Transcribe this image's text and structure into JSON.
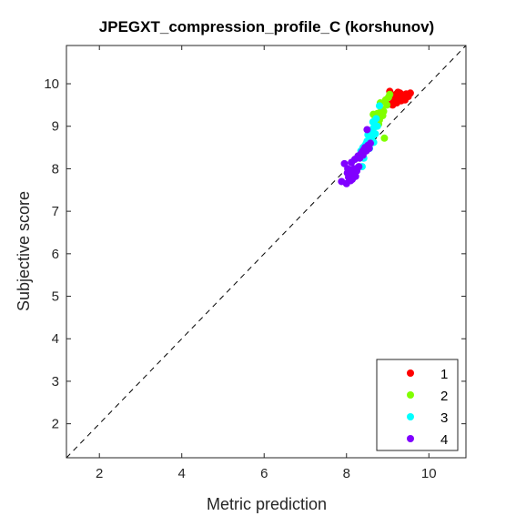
{
  "chart_data": {
    "type": "scatter",
    "title": "JPEGXT_compression_profile_C (korshunov)",
    "xlabel": "Metric prediction",
    "ylabel": "Subjective score",
    "xlim": [
      1.2,
      10.9
    ],
    "ylim": [
      1.2,
      10.9
    ],
    "xticks": [
      2,
      4,
      6,
      8,
      10
    ],
    "yticks": [
      2,
      3,
      4,
      5,
      6,
      7,
      8,
      9,
      10
    ],
    "grid": false,
    "legend_position": "bottom-right",
    "reference_line": "identity (dashed)",
    "series": [
      {
        "name": "1",
        "color": "#ff0000",
        "points": [
          [
            9.05,
            9.82
          ],
          [
            9.1,
            9.7
          ],
          [
            9.15,
            9.62
          ],
          [
            9.2,
            9.75
          ],
          [
            9.22,
            9.55
          ],
          [
            9.28,
            9.68
          ],
          [
            9.3,
            9.78
          ],
          [
            9.33,
            9.6
          ],
          [
            9.38,
            9.72
          ],
          [
            9.4,
            9.65
          ],
          [
            9.45,
            9.76
          ],
          [
            9.5,
            9.7
          ],
          [
            9.55,
            9.78
          ],
          [
            9.25,
            9.8
          ],
          [
            9.18,
            9.58
          ],
          [
            9.35,
            9.74
          ],
          [
            9.42,
            9.62
          ],
          [
            9.12,
            9.5
          ],
          [
            9.08,
            9.52
          ]
        ]
      },
      {
        "name": "2",
        "color": "#80ff00",
        "points": [
          [
            8.65,
            9.28
          ],
          [
            8.7,
            9.2
          ],
          [
            8.75,
            9.3
          ],
          [
            8.78,
            9.05
          ],
          [
            8.8,
            9.15
          ],
          [
            8.85,
            9.4
          ],
          [
            8.88,
            9.25
          ],
          [
            8.9,
            9.35
          ],
          [
            8.95,
            9.62
          ],
          [
            8.98,
            9.5
          ],
          [
            9.02,
            9.68
          ],
          [
            9.05,
            9.75
          ],
          [
            8.92,
            8.72
          ],
          [
            8.72,
            9.0
          ],
          [
            8.82,
            9.55
          ]
        ]
      },
      {
        "name": "3",
        "color": "#00ffff",
        "points": [
          [
            8.3,
            8.3
          ],
          [
            8.35,
            8.42
          ],
          [
            8.4,
            8.5
          ],
          [
            8.45,
            8.55
          ],
          [
            8.5,
            8.65
          ],
          [
            8.52,
            8.8
          ],
          [
            8.55,
            8.7
          ],
          [
            8.58,
            8.85
          ],
          [
            8.6,
            8.9
          ],
          [
            8.62,
            8.75
          ],
          [
            8.65,
            8.95
          ],
          [
            8.68,
            9.05
          ],
          [
            8.7,
            8.82
          ],
          [
            8.72,
            9.18
          ],
          [
            8.75,
            9.0
          ],
          [
            8.8,
            9.48
          ],
          [
            8.48,
            8.6
          ],
          [
            8.56,
            8.48
          ],
          [
            8.38,
            8.05
          ],
          [
            8.42,
            8.25
          ],
          [
            8.64,
            9.1
          ],
          [
            8.66,
            8.62
          ]
        ]
      },
      {
        "name": "4",
        "color": "#8000ff",
        "points": [
          [
            7.88,
            7.7
          ],
          [
            7.95,
            8.12
          ],
          [
            8.0,
            7.65
          ],
          [
            8.02,
            7.9
          ],
          [
            8.05,
            7.8
          ],
          [
            8.08,
            7.98
          ],
          [
            8.1,
            7.72
          ],
          [
            8.12,
            8.15
          ],
          [
            8.15,
            7.85
          ],
          [
            8.18,
            8.0
          ],
          [
            8.2,
            8.22
          ],
          [
            8.22,
            7.82
          ],
          [
            8.25,
            7.95
          ],
          [
            8.28,
            8.3
          ],
          [
            8.3,
            8.05
          ],
          [
            8.32,
            8.25
          ],
          [
            8.35,
            8.35
          ],
          [
            8.38,
            8.4
          ],
          [
            8.4,
            8.32
          ],
          [
            8.42,
            8.45
          ],
          [
            8.45,
            8.5
          ],
          [
            8.48,
            8.42
          ],
          [
            8.5,
            8.92
          ],
          [
            8.52,
            8.55
          ],
          [
            8.55,
            8.48
          ],
          [
            8.58,
            8.6
          ],
          [
            8.03,
            8.0
          ],
          [
            8.27,
            8.02
          ],
          [
            8.14,
            7.75
          ]
        ]
      }
    ]
  }
}
